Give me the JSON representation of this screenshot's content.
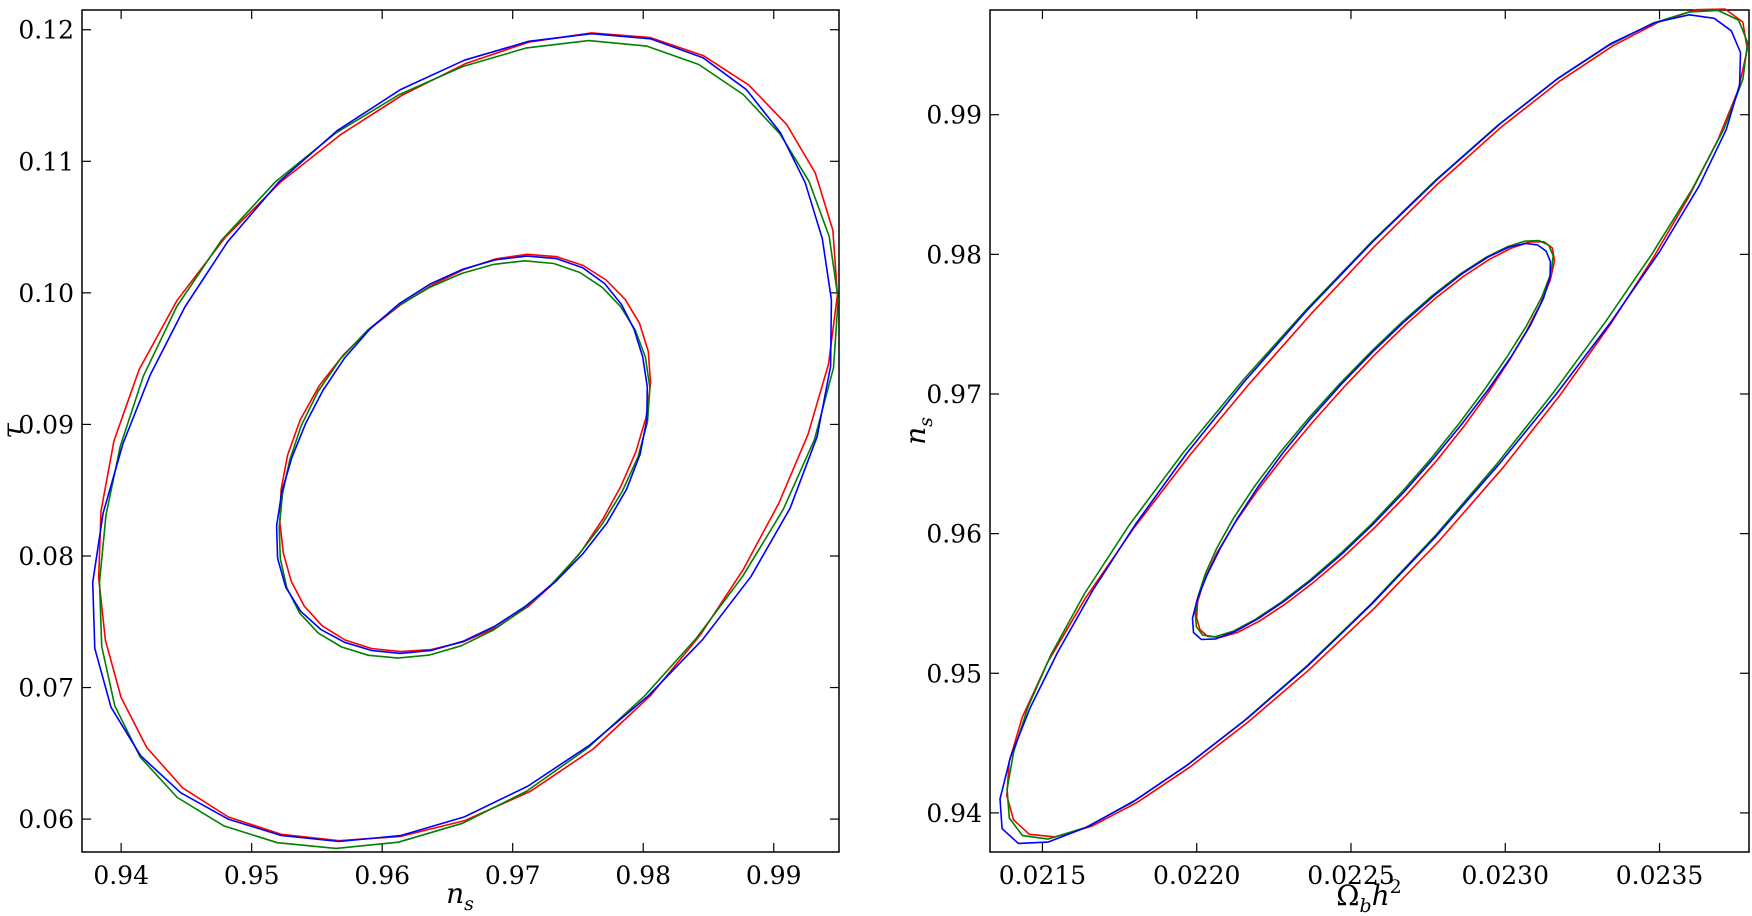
{
  "chart_data": [
    {
      "type": "line",
      "xlabel": "n_s",
      "ylabel": "τ",
      "xlim": [
        0.937,
        0.995
      ],
      "ylim": [
        0.0575,
        0.1215
      ],
      "xticks": [
        0.94,
        0.95,
        0.96,
        0.97,
        0.98,
        0.99
      ],
      "yticks": [
        0.06,
        0.07,
        0.08,
        0.09,
        0.1,
        0.11,
        0.12
      ],
      "xtick_labels": [
        "0.94",
        "0.95",
        "0.96",
        "0.97",
        "0.98",
        "0.99"
      ],
      "ytick_labels": [
        "0.06",
        "0.07",
        "0.08",
        "0.09",
        "0.10",
        "0.11",
        "0.12"
      ],
      "grid": false,
      "contours": [
        {
          "level": "inner",
          "center": [
            0.9662,
            0.0876
          ],
          "a": 0.0142,
          "b": 0.0151,
          "rho": 0.35
        },
        {
          "level": "outer",
          "center": [
            0.9663,
            0.0888
          ],
          "a": 0.0283,
          "b": 0.0307,
          "rho": 0.35
        }
      ],
      "series": [
        {
          "color": "#ff0000",
          "dx": 5e-05,
          "dy": 0.0002
        },
        {
          "color": "#008000",
          "dx": -0.00012,
          "dy": -0.0002
        },
        {
          "color": "#0000ff",
          "dx": 0.0,
          "dy": 0.0
        }
      ]
    },
    {
      "type": "line",
      "xlabel": "Ω_b h^2",
      "ylabel": "n_s",
      "xlim": [
        0.02133,
        0.02379
      ],
      "ylim": [
        0.9372,
        0.9975
      ],
      "xticks": [
        0.0215,
        0.022,
        0.0225,
        0.023,
        0.0235
      ],
      "yticks": [
        0.94,
        0.95,
        0.96,
        0.97,
        0.98,
        0.99
      ],
      "xtick_labels": [
        "0.0215",
        "0.0220",
        "0.0225",
        "0.0230",
        "0.0235"
      ],
      "ytick_labels": [
        "0.94",
        "0.95",
        "0.96",
        "0.97",
        "0.98",
        "0.99"
      ],
      "grid": false,
      "contours": [
        {
          "level": "inner",
          "center": [
            0.02257,
            0.9668
          ],
          "a": 0.00058,
          "b": 0.0142,
          "rho": 0.9
        },
        {
          "level": "outer",
          "center": [
            0.02257,
            0.9679
          ],
          "a": 0.0012,
          "b": 0.0297,
          "rho": 0.9
        }
      ],
      "series": [
        {
          "color": "#ff0000",
          "dx": 5e-06,
          "dy": -0.00015
        },
        {
          "color": "#008000",
          "dx": -4e-06,
          "dy": 0.0001
        },
        {
          "color": "#0000ff",
          "dx": 0.0,
          "dy": 0.0
        }
      ]
    }
  ]
}
